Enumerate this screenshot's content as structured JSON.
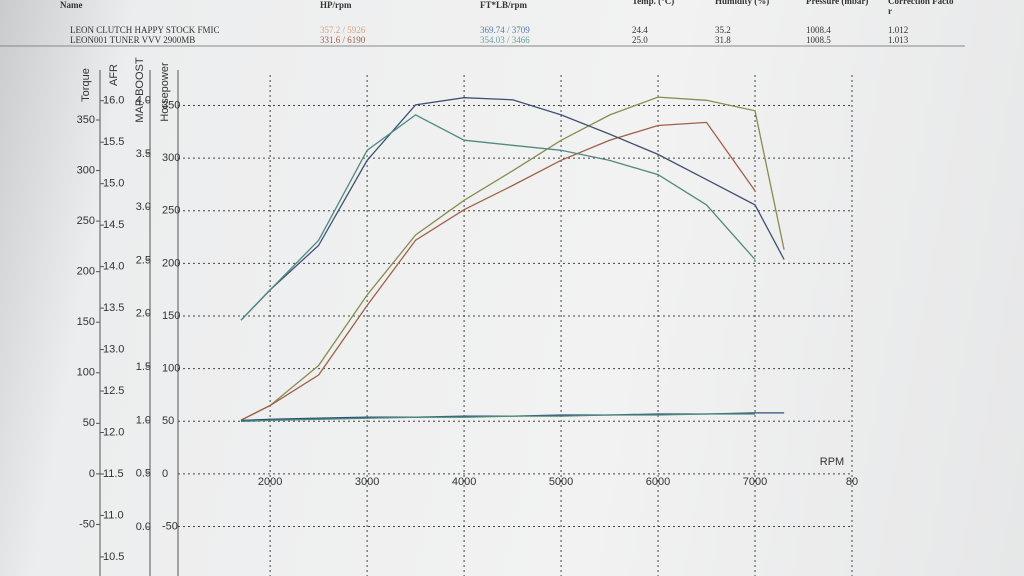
{
  "table": {
    "headers": [
      "Name",
      "HP/rpm",
      "FT*LB/rpm",
      "Temp. (°C)",
      "Humidity (%)",
      "Pressure (mbar)",
      "Correction Factor"
    ],
    "rows": [
      [
        "LEON CLUTCH HAPPY STOCK FMIC",
        "357.2 / 5926",
        "369.74 / 3709",
        "24.4",
        "35.2",
        "1008.4",
        "1.012"
      ],
      [
        "LEON001 TUNER VVV 2900MB",
        "331.6 / 6190",
        "354.03 / 3466",
        "25.0",
        "31.8",
        "1008.5",
        "1.013"
      ]
    ]
  },
  "chart_data": {
    "type": "line",
    "xlabel": "RPM",
    "ylabel": "Horsepower",
    "y2label": "Torque",
    "y3label": "AFR",
    "y4label": "MAP BOOST",
    "x": [
      1700,
      2000,
      2500,
      3000,
      3500,
      4000,
      4500,
      5000,
      5500,
      6000,
      6500,
      7000,
      7300
    ],
    "xlim": [
      1050,
      8000
    ],
    "xticks": [
      2000,
      3000,
      4000,
      5000,
      6000,
      7000,
      {
        "value": 8000,
        "label": "80"
      }
    ],
    "ylim": [
      -97,
      379
    ],
    "yticks": [
      -50,
      0,
      50,
      100,
      150,
      200,
      250,
      300,
      350
    ],
    "y2lim": [
      -101,
      394.5
    ],
    "y2ticks": [
      -50,
      0,
      50,
      100,
      150,
      200,
      250,
      300,
      350
    ],
    "y3lim": [
      10.27,
      16.31
    ],
    "y3ticks": [
      10.5,
      {
        "value": 11,
        "label": "11.0"
      },
      11.5,
      {
        "value": 12,
        "label": "12.0"
      },
      12.5,
      {
        "value": 13,
        "label": "13.0"
      },
      13.5,
      {
        "value": 14,
        "label": "14.0"
      },
      14.5,
      {
        "value": 15,
        "label": "15.0"
      },
      15.5,
      {
        "value": 16,
        "label": "16.0"
      }
    ],
    "y4lim": [
      -0.46,
      4.24
    ],
    "y4ticks": [
      {
        "value": 0,
        "label": "0.0"
      },
      0.5,
      {
        "value": 1,
        "label": "1.0"
      },
      1.5,
      {
        "value": 2,
        "label": "2.0"
      },
      2.5,
      {
        "value": 3,
        "label": "3.0"
      },
      3.5,
      {
        "value": 4,
        "label": "4.0"
      }
    ],
    "grid": true,
    "series": [
      {
        "color": "#8a8c4e",
        "axis": "y",
        "values": [
          51,
          65,
          103,
          170,
          227,
          260,
          288,
          317,
          341,
          358,
          355,
          345,
          213
        ]
      },
      {
        "color": "#a0604a",
        "axis": "y",
        "values": [
          51,
          65,
          94,
          160,
          222,
          251,
          274,
          298,
          317,
          331,
          334,
          269,
          null
        ]
      },
      {
        "color": "#3f5070",
        "axis": "y2",
        "values": [
          152,
          182,
          226,
          310,
          365,
          372,
          370,
          355,
          336,
          316,
          291,
          266,
          212
        ]
      },
      {
        "color": "#4f8a80",
        "axis": "y2",
        "values": [
          152,
          182,
          231,
          320,
          355,
          330,
          325,
          320,
          310,
          296,
          266,
          212,
          null
        ]
      },
      {
        "color": "#2f4f7a",
        "axis": "y4",
        "values": [
          1.0,
          1.01,
          1.02,
          1.03,
          1.03,
          1.04,
          1.04,
          1.05,
          1.05,
          1.06,
          1.06,
          1.07,
          1.07
        ]
      },
      {
        "color": "#4a8a7a",
        "axis": "y4",
        "values": [
          0.99,
          1.0,
          1.01,
          1.02,
          1.03,
          1.03,
          1.04,
          1.04,
          1.05,
          1.05,
          1.06,
          1.06,
          null
        ]
      }
    ]
  }
}
